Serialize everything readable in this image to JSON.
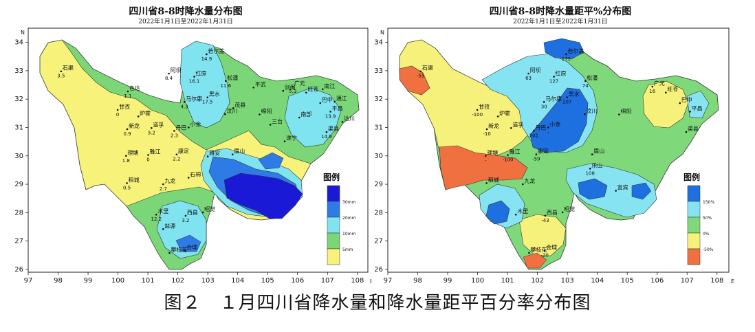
{
  "left_map": {
    "title": "四川省8-8时降水量分布图",
    "subtitle": "2022年1月1日至2022年1月31日",
    "legend_title": "图例",
    "legend": [
      "30mm",
      "20mm",
      "10mm",
      "5mm"
    ],
    "legend_colors": [
      "#1a1ad6",
      "#2e7be6",
      "#7fe3f0",
      "#7ad676",
      "#f6f27a"
    ],
    "north_label": "N",
    "east_label": "E",
    "stations": [
      {
        "name": "若尔盖",
        "value": "14.9",
        "lon": 102.96,
        "lat": 33.58
      },
      {
        "name": "石渠",
        "value": "3.5",
        "lon": 98.1,
        "lat": 32.98
      },
      {
        "name": "阿坝",
        "value": "8.4",
        "lon": 101.7,
        "lat": 32.9
      },
      {
        "name": "红原",
        "value": "16.1",
        "lon": 102.55,
        "lat": 32.79
      },
      {
        "name": "松潘",
        "value": "11.6",
        "lon": 103.6,
        "lat": 32.64
      },
      {
        "name": "平武",
        "value": "",
        "lon": 104.53,
        "lat": 32.41
      },
      {
        "name": "广元",
        "value": "5.3",
        "lon": 105.84,
        "lat": 32.44
      },
      {
        "name": "旺苍",
        "value": "",
        "lon": 106.29,
        "lat": 32.23
      },
      {
        "name": "南江",
        "value": "",
        "lon": 106.84,
        "lat": 32.35
      },
      {
        "name": "马尔康",
        "value": "4.3",
        "lon": 102.22,
        "lat": 31.9
      },
      {
        "name": "黑水",
        "value": "17.5",
        "lon": 102.99,
        "lat": 32.06
      },
      {
        "name": "茂县",
        "value": "",
        "lon": 103.85,
        "lat": 31.68
      },
      {
        "name": "剑阁",
        "value": "",
        "lon": 105.52,
        "lat": 32.29
      },
      {
        "name": "巴中",
        "value": "",
        "lon": 106.76,
        "lat": 31.86
      },
      {
        "name": "通江",
        "value": "",
        "lon": 107.24,
        "lat": 31.91
      },
      {
        "name": "甘孜",
        "value": "0",
        "lon": 99.99,
        "lat": 31.62
      },
      {
        "name": "色达",
        "value": "1.1",
        "lon": 100.33,
        "lat": 32.27
      },
      {
        "name": "炉霍",
        "value": "",
        "lon": 100.68,
        "lat": 31.39
      },
      {
        "name": "汶川",
        "value": "",
        "lon": 103.58,
        "lat": 31.47
      },
      {
        "name": "绵阳",
        "value": "",
        "lon": 104.73,
        "lat": 31.46
      },
      {
        "name": "南部",
        "value": "",
        "lon": 106.06,
        "lat": 31.35
      },
      {
        "name": "平昌",
        "value": "13.9",
        "lon": 107.1,
        "lat": 31.56
      },
      {
        "name": "达川",
        "value": "",
        "lon": 107.5,
        "lat": 31.2
      },
      {
        "name": "新龙",
        "value": "0.9",
        "lon": 100.31,
        "lat": 30.94
      },
      {
        "name": "道孚",
        "value": "3.2",
        "lon": 101.12,
        "lat": 30.98
      },
      {
        "name": "丹巴",
        "value": "2.3",
        "lon": 101.88,
        "lat": 30.88
      },
      {
        "name": "小金",
        "value": "",
        "lon": 102.36,
        "lat": 31.0
      },
      {
        "name": "三台",
        "value": "",
        "lon": 105.09,
        "lat": 31.1
      },
      {
        "name": "渠县",
        "value": "14.9",
        "lon": 106.97,
        "lat": 30.84
      },
      {
        "name": "遂宁",
        "value": "",
        "lon": 105.57,
        "lat": 30.51
      },
      {
        "name": "理塘",
        "value": "1.8",
        "lon": 100.27,
        "lat": 30.0
      },
      {
        "name": "雅江",
        "value": "0",
        "lon": 101.01,
        "lat": 30.03
      },
      {
        "name": "康定",
        "value": "2.2",
        "lon": 101.96,
        "lat": 30.05
      },
      {
        "name": "雅安",
        "value": "",
        "lon": 103.0,
        "lat": 29.98
      },
      {
        "name": "眉山",
        "value": "",
        "lon": 103.83,
        "lat": 30.05
      },
      {
        "name": "稻城",
        "value": "0.5",
        "lon": 100.3,
        "lat": 29.04
      },
      {
        "name": "九龙",
        "value": "2.7",
        "lon": 101.51,
        "lat": 29.0
      },
      {
        "name": "石棉",
        "value": "",
        "lon": 102.36,
        "lat": 29.23
      },
      {
        "name": "木里",
        "value": "12.2",
        "lon": 101.28,
        "lat": 27.93
      },
      {
        "name": "西昌",
        "value": "3.2",
        "lon": 102.26,
        "lat": 27.89
      },
      {
        "name": "昭觉",
        "value": "",
        "lon": 102.84,
        "lat": 28.01
      },
      {
        "name": "盐源",
        "value": "",
        "lon": 101.51,
        "lat": 27.42
      },
      {
        "name": "会理",
        "value": "",
        "lon": 102.24,
        "lat": 26.66
      },
      {
        "name": "攀枝花",
        "value": "",
        "lon": 101.72,
        "lat": 26.58
      }
    ]
  },
  "right_map": {
    "title": "四川省8-8时降水量距平%分布图",
    "subtitle": "2022年1月1日至2022年1月31日",
    "legend_title": "图例",
    "legend": [
      "150%",
      "50%",
      "0%",
      "-50%"
    ],
    "legend_colors": [
      "#1e6fe0",
      "#86e3f2",
      "#7fd87a",
      "#f6f17a",
      "#f07040"
    ],
    "north_label": "N",
    "east_label": "E",
    "stations": [
      {
        "name": "若尔盖",
        "value": "171",
        "lon": 102.96,
        "lat": 33.58
      },
      {
        "name": "石渠",
        "value": "-55",
        "lon": 98.1,
        "lat": 32.98
      },
      {
        "name": "阿坝",
        "value": "63",
        "lon": 101.7,
        "lat": 32.9
      },
      {
        "name": "红原",
        "value": "127",
        "lon": 102.55,
        "lat": 32.79
      },
      {
        "name": "松潘",
        "value": "74",
        "lon": 103.6,
        "lat": 32.64
      },
      {
        "name": "广元",
        "value": "16",
        "lon": 105.84,
        "lat": 32.44
      },
      {
        "name": "旺苍",
        "value": "",
        "lon": 106.29,
        "lat": 32.23
      },
      {
        "name": "马尔康",
        "value": "30",
        "lon": 102.22,
        "lat": 31.9
      },
      {
        "name": "黑水",
        "value": "207",
        "lon": 102.99,
        "lat": 32.06
      },
      {
        "name": "巴中",
        "value": "",
        "lon": 106.76,
        "lat": 31.86
      },
      {
        "name": "平昌",
        "value": "",
        "lon": 107.1,
        "lat": 31.56
      },
      {
        "name": "甘孜",
        "value": "-100",
        "lon": 99.99,
        "lat": 31.62
      },
      {
        "name": "炉霍",
        "value": "",
        "lon": 100.68,
        "lat": 31.39
      },
      {
        "name": "汶川",
        "value": "",
        "lon": 103.58,
        "lat": 31.47
      },
      {
        "name": "绵阳",
        "value": "",
        "lon": 104.73,
        "lat": 31.46
      },
      {
        "name": "新龙",
        "value": "-10",
        "lon": 100.31,
        "lat": 30.94
      },
      {
        "name": "道孚",
        "value": "",
        "lon": 101.12,
        "lat": 30.98
      },
      {
        "name": "丹巴",
        "value": "201",
        "lon": 101.88,
        "lat": 30.88
      },
      {
        "name": "小金",
        "value": "-",
        "lon": 102.36,
        "lat": 31.0
      },
      {
        "name": "渠县",
        "value": "",
        "lon": 106.97,
        "lat": 30.84
      },
      {
        "name": "理塘",
        "value": "-",
        "lon": 100.27,
        "lat": 30.0
      },
      {
        "name": "雅江",
        "value": "-100",
        "lon": 101.01,
        "lat": 30.03
      },
      {
        "name": "康定",
        "value": "-59",
        "lon": 101.96,
        "lat": 30.05
      },
      {
        "name": "眉山",
        "value": "",
        "lon": 103.83,
        "lat": 30.05
      },
      {
        "name": "乐山",
        "value": "108",
        "lon": 103.76,
        "lat": 29.55
      },
      {
        "name": "稻城",
        "value": "",
        "lon": 100.3,
        "lat": 29.04
      },
      {
        "name": "九龙",
        "value": "",
        "lon": 101.51,
        "lat": 29.0
      },
      {
        "name": "木里",
        "value": "",
        "lon": 101.28,
        "lat": 27.93
      },
      {
        "name": "西昌",
        "value": "-43",
        "lon": 102.26,
        "lat": 27.89
      },
      {
        "name": "昭觉",
        "value": "",
        "lon": 102.84,
        "lat": 28.01
      },
      {
        "name": "宜宾",
        "value": "",
        "lon": 104.62,
        "lat": 28.77
      },
      {
        "name": "会理",
        "value": "-20",
        "lon": 102.24,
        "lat": 26.66
      },
      {
        "name": "攀枝花",
        "value": "",
        "lon": 101.72,
        "lat": 26.58
      }
    ]
  },
  "axes": {
    "x_ticks": [
      "97",
      "98",
      "99",
      "100",
      "101",
      "102",
      "103",
      "104",
      "105",
      "106",
      "107",
      "108"
    ],
    "y_ticks": [
      "26",
      "27",
      "28",
      "29",
      "30",
      "31",
      "32",
      "33",
      "34"
    ]
  },
  "caption": "图２　１月四川省降水量和降水量距平百分率分布图"
}
